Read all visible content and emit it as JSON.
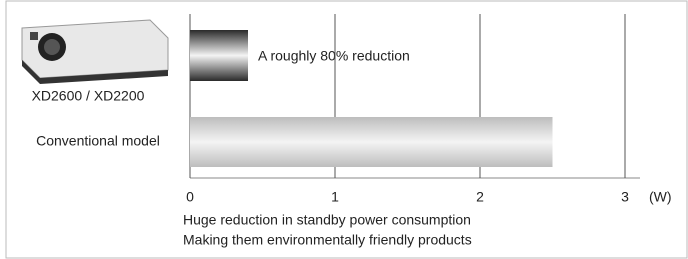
{
  "chart_data": {
    "type": "bar",
    "orientation": "horizontal",
    "categories": [
      "XD2600 / XD2200",
      "Conventional model"
    ],
    "values": [
      0.4,
      2.5
    ],
    "colors": [
      "#2a2a2a",
      "#bdbdbd"
    ],
    "xlim": [
      0,
      3
    ],
    "xticks": [
      0,
      1,
      2,
      3
    ],
    "grid": true,
    "x_label": "(W)",
    "annotation": "A roughly 80% reduction",
    "notes": [
      "Huge reduction in standby power consumption",
      "Making them environmentally friendly products"
    ]
  }
}
